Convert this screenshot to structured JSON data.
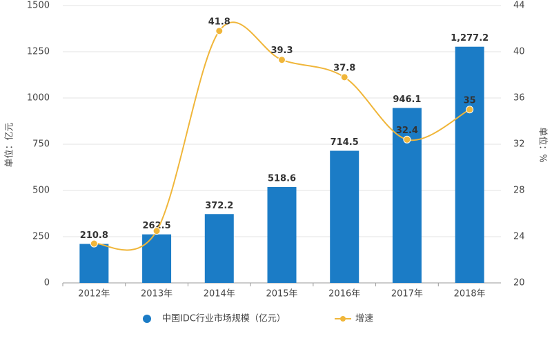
{
  "chart_data": {
    "type": "bar-line",
    "categories": [
      "2012年",
      "2013年",
      "2014年",
      "2015年",
      "2016年",
      "2017年",
      "2018年"
    ],
    "series": [
      {
        "name": "中国IDC行业市场规模（亿元）",
        "type": "bar",
        "color": "#1b7cc6",
        "values": [
          210.8,
          262.5,
          372.2,
          518.6,
          714.5,
          946.1,
          1277.2
        ],
        "value_labels": [
          "210.8",
          "262.5",
          "372.2",
          "518.6",
          "714.5",
          "946.1",
          "1,277.2"
        ]
      },
      {
        "name": "增速",
        "type": "line",
        "axis": "y2",
        "color": "#f0b63a",
        "values": [
          23.4,
          24.5,
          41.8,
          39.3,
          37.8,
          32.4,
          35
        ],
        "value_labels": [
          null,
          null,
          "41.8",
          "39.3",
          "37.8",
          "32.4",
          "35"
        ]
      }
    ],
    "ylabel": "单位：亿元",
    "y2label": "单位：%",
    "ylim": [
      0,
      1500
    ],
    "yticks": [
      0,
      250,
      500,
      750,
      1000,
      1250,
      1500
    ],
    "y2lim": [
      20,
      44
    ],
    "y2ticks": [
      20,
      24,
      28,
      32,
      36,
      40,
      44
    ],
    "grid": true
  }
}
